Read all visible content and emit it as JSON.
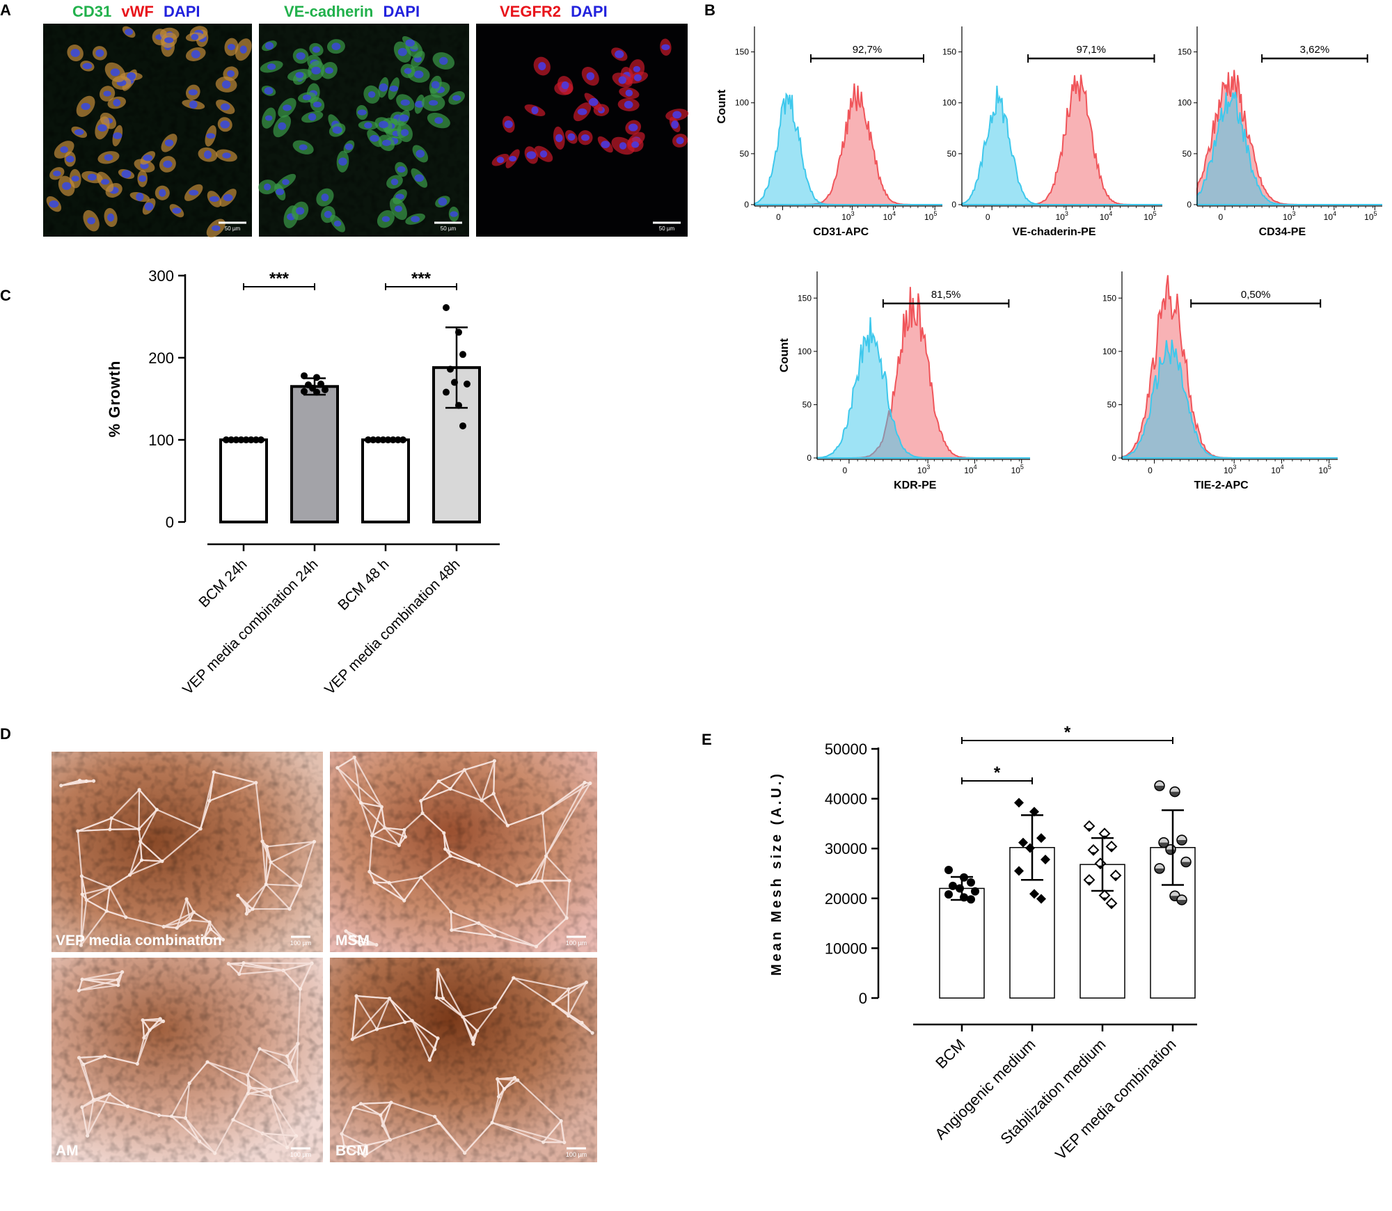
{
  "panels": {
    "A": {
      "letter": "A",
      "images": [
        {
          "stain": [
            {
              "text": "CD31",
              "color": "#22b14c"
            },
            {
              "text": "vWF",
              "color": "#e8141b"
            },
            {
              "text": "DAPI",
              "color": "#2222dd"
            }
          ],
          "scale": "50 µm"
        },
        {
          "stain": [
            {
              "text": "VE-cadherin",
              "color": "#22b14c"
            },
            {
              "text": "DAPI",
              "color": "#2222dd"
            }
          ],
          "scale": "50 µm"
        },
        {
          "stain": [
            {
              "text": "VEGFR2",
              "color": "#e8141b"
            },
            {
              "text": "DAPI",
              "color": "#2222dd"
            }
          ],
          "scale": "50 µm"
        }
      ]
    },
    "B": {
      "letter": "B",
      "ylabel": "Count",
      "histograms": [
        {
          "xlabel": "CD31-APC",
          "percent": "92,7%",
          "ymax": 150
        },
        {
          "xlabel": "VE-chaderin-PE",
          "percent": "97,1%",
          "ymax": 150
        },
        {
          "xlabel": "CD34-PE",
          "percent": "3,62%",
          "ymax": 150
        },
        {
          "xlabel": "KDR-PE",
          "percent": "81,5%",
          "ymax": 150
        },
        {
          "xlabel": "TIE-2-APC",
          "percent": "0,50%",
          "ymax": 150
        }
      ],
      "yticks": [
        "0",
        "50",
        "100",
        "150"
      ],
      "xticks": [
        "0",
        "10",
        "10",
        "10"
      ],
      "xtick_exp": [
        "",
        "3",
        "4",
        "5"
      ],
      "colors": {
        "control": "#3ec8ec",
        "stained": "#f0555a"
      }
    },
    "C": {
      "letter": "C",
      "significance": [
        "***",
        "***"
      ]
    },
    "D": {
      "letter": "D",
      "images": [
        {
          "label": "VEP media combination",
          "scale": "100 µm"
        },
        {
          "label": "MSM",
          "scale": "100 µm"
        },
        {
          "label": "AM",
          "scale": "100 µm"
        },
        {
          "label": "BCM",
          "scale": "100 µm"
        }
      ]
    },
    "E": {
      "letter": "E",
      "significance": [
        "*",
        "*"
      ]
    }
  },
  "chart_data": [
    {
      "type": "bar",
      "panel": "C",
      "title": "",
      "xlabel": "",
      "ylabel": "% Growth",
      "ylim": [
        0,
        300
      ],
      "yticks": [
        0,
        100,
        200,
        300
      ],
      "categories": [
        "BCM 24h",
        "VEP media combination 24h",
        "BCM 48 h",
        "VEP media combination 48h"
      ],
      "values": [
        100,
        165,
        100,
        188
      ],
      "errors": [
        0,
        10,
        0,
        49
      ],
      "bar_colors": [
        "#ffffff",
        "#a3a3a8",
        "#ffffff",
        "#d8d8d8"
      ],
      "points": [
        [
          100,
          100,
          100,
          100,
          100,
          100,
          100,
          100
        ],
        [
          178,
          176,
          168,
          167,
          163,
          161,
          159,
          158
        ],
        [
          100,
          100,
          100,
          100,
          100,
          100,
          100,
          100
        ],
        [
          261,
          231,
          204,
          186,
          170,
          168,
          158,
          142,
          117
        ]
      ],
      "significance": [
        {
          "from": 0,
          "to": 1,
          "label": "***"
        },
        {
          "from": 2,
          "to": 3,
          "label": "***"
        }
      ]
    },
    {
      "type": "bar",
      "panel": "E",
      "title": "",
      "xlabel": "",
      "ylabel": "Mean Mesh size (A.U.)",
      "ylim": [
        0,
        50000
      ],
      "yticks": [
        0,
        10000,
        20000,
        30000,
        40000,
        50000
      ],
      "categories": [
        "BCM",
        "Angiogenic medium",
        "Stabilization medium",
        "VEP media combination"
      ],
      "values": [
        22000,
        30200,
        26800,
        30200
      ],
      "errors": [
        2300,
        6500,
        5300,
        7500
      ],
      "markers": [
        "circle",
        "diamond",
        "diamond-open",
        "circle-half"
      ],
      "points": [
        [
          25700,
          24200,
          23200,
          22500,
          22000,
          21400,
          20800,
          20200,
          19800
        ],
        [
          39200,
          37400,
          32100,
          31200,
          30100,
          27800,
          25500,
          20900,
          19900
        ],
        [
          34500,
          33000,
          30400,
          29700,
          27000,
          24600,
          23700,
          20600,
          19000
        ],
        [
          42600,
          41400,
          31700,
          31200,
          29800,
          27300,
          26000,
          20500,
          19700
        ]
      ],
      "significance": [
        {
          "from": 0,
          "to": 1,
          "label": "*"
        },
        {
          "from": 0,
          "to": 3,
          "label": "*"
        }
      ]
    }
  ]
}
